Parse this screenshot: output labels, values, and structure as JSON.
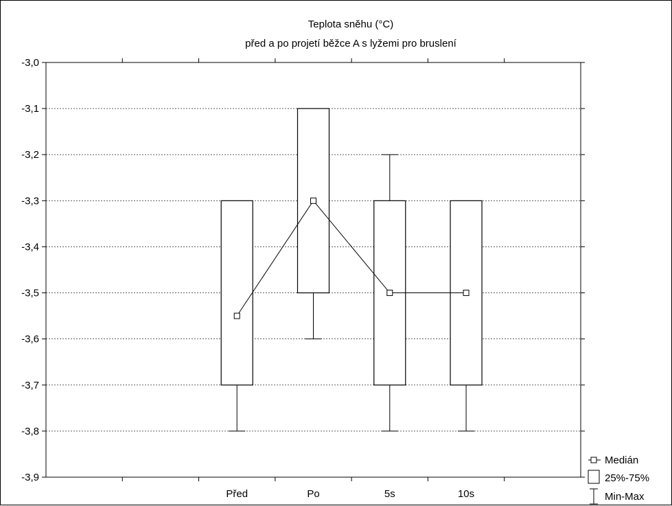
{
  "chart_data": {
    "type": "box",
    "title": "Teplota sněhu (°C)",
    "subtitle": "před a po projetí běžce A s lyžemi pro bruslení",
    "xlabel": "",
    "ylabel": "",
    "ylim": [
      -3.9,
      -3.0
    ],
    "yticks": [
      -3.0,
      -3.1,
      -3.2,
      -3.3,
      -3.4,
      -3.5,
      -3.6,
      -3.7,
      -3.8,
      -3.9
    ],
    "ytick_labels": [
      "-3,0",
      "-3,1",
      "-3,2",
      "-3,3",
      "-3,4",
      "-3,5",
      "-3,6",
      "-3,7",
      "-3,8",
      "-3,9"
    ],
    "categories": [
      "Před",
      "Po",
      "5s",
      "10s"
    ],
    "series": {
      "median": [
        -3.55,
        -3.3,
        -3.5,
        -3.5
      ],
      "q1": [
        -3.7,
        -3.5,
        -3.7,
        -3.7
      ],
      "q3": [
        -3.3,
        -3.1,
        -3.3,
        -3.3
      ],
      "min": [
        -3.8,
        -3.6,
        -3.8,
        -3.8
      ],
      "max": [
        -3.3,
        -3.1,
        -3.2,
        -3.3
      ]
    },
    "grid": true,
    "legend_position": "bottom-right",
    "legend": [
      "Medián",
      "25%-75%",
      "Min-Max"
    ]
  }
}
